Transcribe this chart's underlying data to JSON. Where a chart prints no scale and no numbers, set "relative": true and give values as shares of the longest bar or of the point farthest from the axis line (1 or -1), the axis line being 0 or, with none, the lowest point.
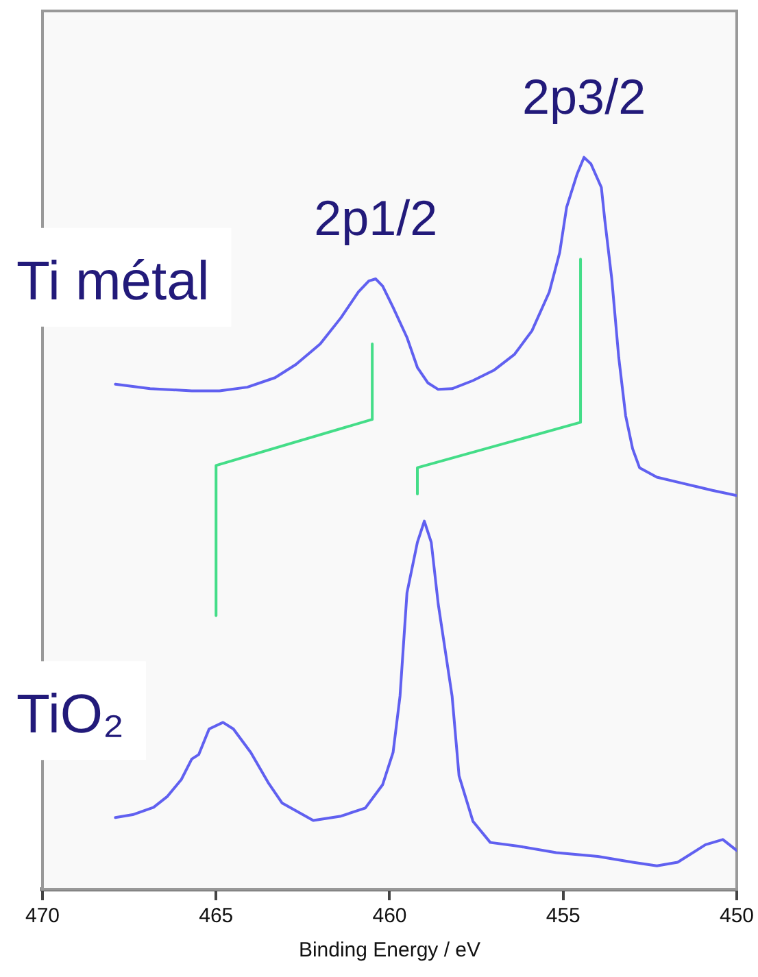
{
  "chart_data": {
    "type": "line",
    "relative": true,
    "xlabel": "Binding Energy / eV",
    "xlim": [
      470,
      450
    ],
    "xticks": [
      470,
      465,
      460,
      455,
      450
    ],
    "legend": false,
    "marker": "none",
    "line_style": "solid",
    "annotations": [
      {
        "text": "2p1/2",
        "x": 460.4,
        "y": 0.834
      },
      {
        "text": "2p3/2",
        "x": 454.4,
        "y": 1
      }
    ],
    "series": [
      {
        "name": "Ti métal",
        "color": "#6060f0",
        "x": [
          467.9,
          466.9,
          465.7,
          464.9,
          464.1,
          463.3,
          462.7,
          462.0,
          461.4,
          460.9,
          460.6,
          460.4,
          460.2,
          459.9,
          459.5,
          459.2,
          458.9,
          458.6,
          458.2,
          457.6,
          457.0,
          456.4,
          455.9,
          455.4,
          455.1,
          454.9,
          454.6,
          454.4,
          454.2,
          453.9,
          453.8,
          453.6,
          453.4,
          453.2,
          453.0,
          452.8,
          452.3,
          451.5,
          450.7,
          450.0
        ],
        "values": [
          0.69,
          0.684,
          0.681,
          0.681,
          0.686,
          0.699,
          0.717,
          0.745,
          0.781,
          0.816,
          0.831,
          0.834,
          0.824,
          0.795,
          0.754,
          0.713,
          0.692,
          0.683,
          0.684,
          0.695,
          0.709,
          0.731,
          0.763,
          0.816,
          0.87,
          0.932,
          0.977,
          1,
          0.991,
          0.959,
          0.914,
          0.834,
          0.727,
          0.647,
          0.602,
          0.576,
          0.563,
          0.554,
          0.545,
          0.538
        ]
      },
      {
        "name": "TiO₂",
        "color": "#6060f0",
        "x": [
          467.9,
          467.4,
          466.8,
          466.4,
          466.0,
          465.7,
          465.5,
          465.2,
          464.8,
          464.5,
          464.0,
          463.5,
          463.1,
          462.2,
          461.4,
          460.7,
          460.2,
          459.9,
          459.7,
          459.5,
          459.2,
          459.0,
          458.8,
          458.6,
          458.2,
          458.0,
          457.6,
          457.1,
          456.3,
          455.2,
          454.0,
          453.0,
          452.3,
          451.7,
          450.9,
          450.4,
          450.0
        ],
        "values": [
          0.098,
          0.102,
          0.112,
          0.127,
          0.15,
          0.178,
          0.184,
          0.219,
          0.228,
          0.219,
          0.187,
          0.146,
          0.118,
          0.094,
          0.1,
          0.111,
          0.143,
          0.187,
          0.264,
          0.405,
          0.474,
          0.503,
          0.474,
          0.39,
          0.264,
          0.155,
          0.093,
          0.064,
          0.059,
          0.05,
          0.045,
          0.037,
          0.032,
          0.037,
          0.061,
          0.068,
          0.053
        ]
      },
      {
        "color": "#44dd88",
        "x": [
          465,
          465,
          460.5,
          460.5
        ],
        "values": [
          0.374,
          0.579,
          0.642,
          0.745
        ]
      },
      {
        "color": "#44dd88",
        "x": [
          459.2,
          459.2,
          454.5,
          454.5
        ],
        "values": [
          0.54,
          0.576,
          0.638,
          0.861
        ]
      }
    ]
  }
}
